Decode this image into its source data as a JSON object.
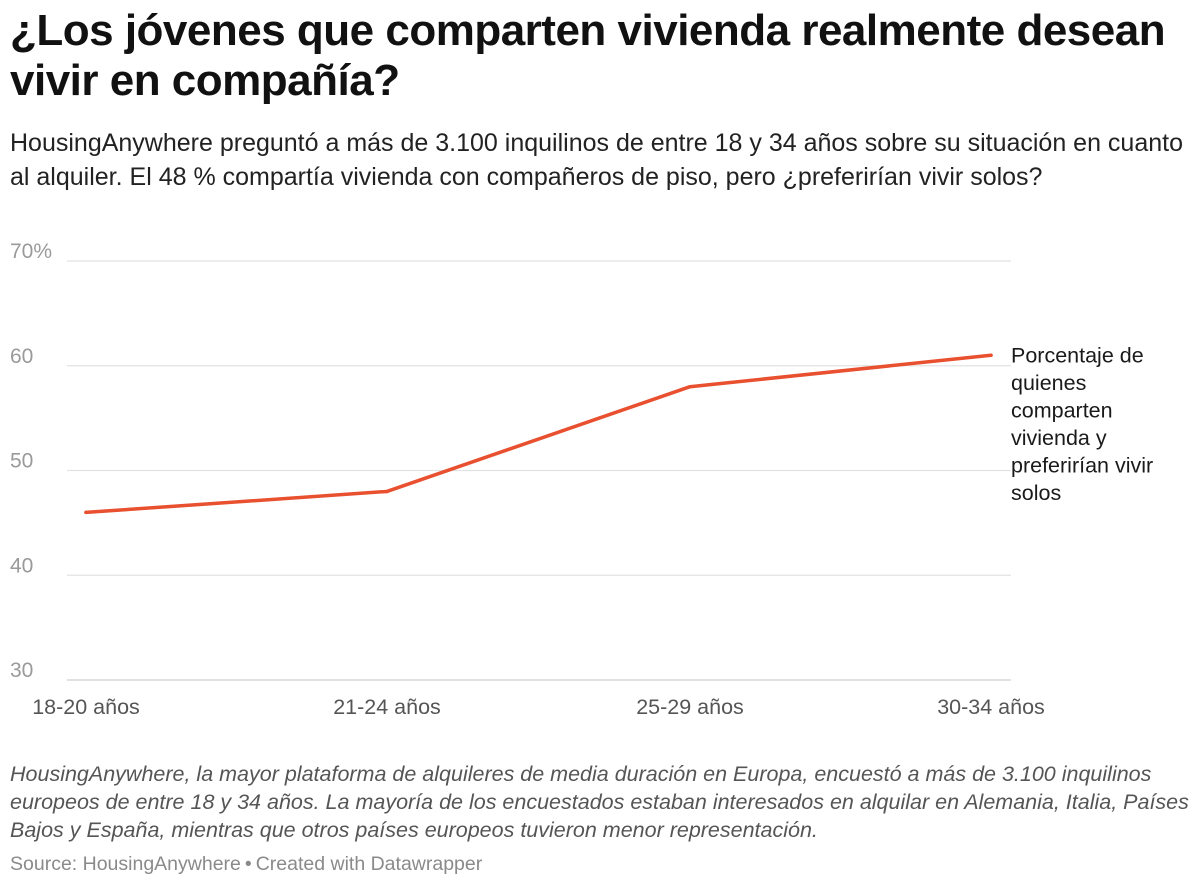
{
  "header": {
    "title": "¿Los jóvenes que comparten vivienda realmente desean vivir en compañía?",
    "subtitle": "HousingAnywhere preguntó a más de 3.100 inquilinos de entre 18 y 34 años sobre su situación en cuanto al alquiler. El 48 % compartía vivienda con compañeros de piso, pero ¿preferirían vivir solos?"
  },
  "chart_data": {
    "type": "line",
    "title": "¿Los jóvenes que comparten vivienda realmente desean vivir en compañía?",
    "categories": [
      "18-20 años",
      "21-24 años",
      "25-29 años",
      "30-34 años"
    ],
    "series": [
      {
        "name": "Porcentaje de quienes comparten vivienda y preferirían vivir solos",
        "values": [
          46,
          48,
          58,
          61
        ],
        "color": "#e8502f"
      }
    ],
    "ylim": [
      30,
      70
    ],
    "yticks": [
      30,
      40,
      50,
      60,
      70
    ],
    "ytick_labels": [
      "30",
      "40",
      "50",
      "60",
      "70%"
    ],
    "label_lines": [
      "Porcentaje de",
      "quienes",
      "comparten",
      "vivienda y",
      "preferirían vivir",
      "solos"
    ],
    "grid": true,
    "legend": "right (direct label)",
    "colors": {
      "line": "#e8502f",
      "grid": "#e2e2e2",
      "tick": "#9a9a9a"
    }
  },
  "footer": {
    "notes": "HousingAnywhere, la mayor plataforma de alquileres de media duración en Europa, encuestó a más de 3.100 inquilinos europeos de entre 18 y 34 años. La mayoría de los encuestados estaban interesados en alquilar en Alemania, Italia, Países Bajos y España, mientras que otros países europeos tuvieron menor representación.",
    "source": "Source: HousingAnywhere",
    "separator": "•",
    "credit": "Created with Datawrapper"
  }
}
